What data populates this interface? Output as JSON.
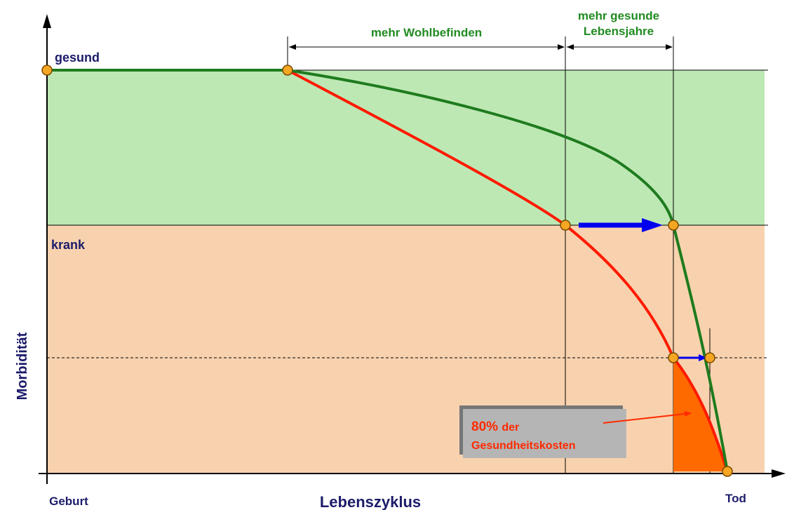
{
  "diagram": {
    "levels": {
      "healthy": "gesund",
      "sick": "krank"
    },
    "y_axis_label": "Morbidität",
    "x_axis_label": "Lebenszyklus",
    "x_start": "Geburt",
    "x_end": "Tod",
    "span_wellbeing": "mehr Wohlbefinden",
    "span_years": [
      "mehr gesunde",
      "Lebensjahre"
    ],
    "cost_note": {
      "percent": "80%",
      "word": "der",
      "line2": "Gesundheitskosten"
    }
  }
}
